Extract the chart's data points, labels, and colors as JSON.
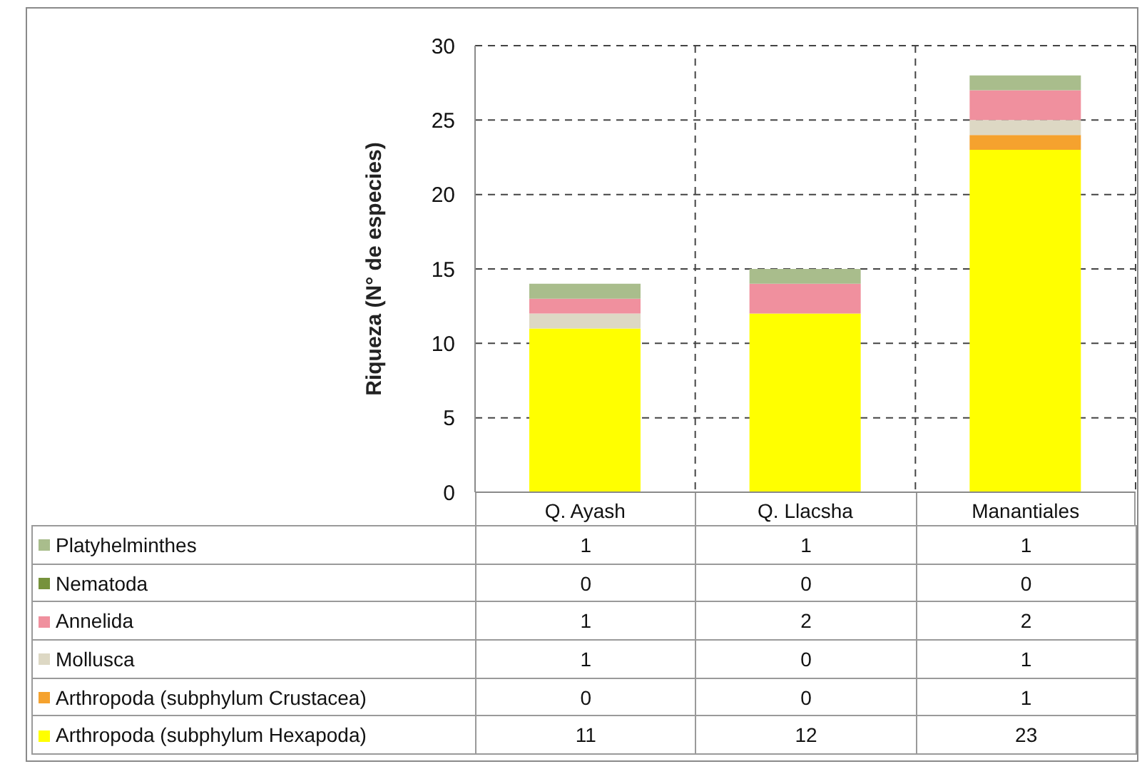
{
  "chart_data": {
    "type": "bar",
    "stacked": true,
    "ylabel": "Riqueza (N° de especies)",
    "categories": [
      "Q. Ayash",
      "Q. Llacsha",
      "Manantiales"
    ],
    "series": [
      {
        "name": "Arthropoda (subphylum Hexapoda)",
        "color": "#ffff00",
        "values": [
          11,
          12,
          23
        ]
      },
      {
        "name": "Arthropoda (subphylum Crustacea)",
        "color": "#f5a22e",
        "values": [
          0,
          0,
          1
        ]
      },
      {
        "name": "Mollusca",
        "color": "#ddd8c4",
        "values": [
          1,
          0,
          1
        ]
      },
      {
        "name": "Annelida",
        "color": "#f0909e",
        "values": [
          1,
          2,
          2
        ]
      },
      {
        "name": "Nematoda",
        "color": "#76923c",
        "values": [
          0,
          0,
          0
        ]
      },
      {
        "name": "Platyhelminthes",
        "color": "#a9bd8c",
        "values": [
          1,
          1,
          1
        ]
      }
    ],
    "ylim": [
      0,
      30
    ],
    "yticks": [
      0,
      5,
      10,
      15,
      20,
      25,
      30
    ],
    "grid": true,
    "legend": "bottom",
    "data_labels": true
  }
}
